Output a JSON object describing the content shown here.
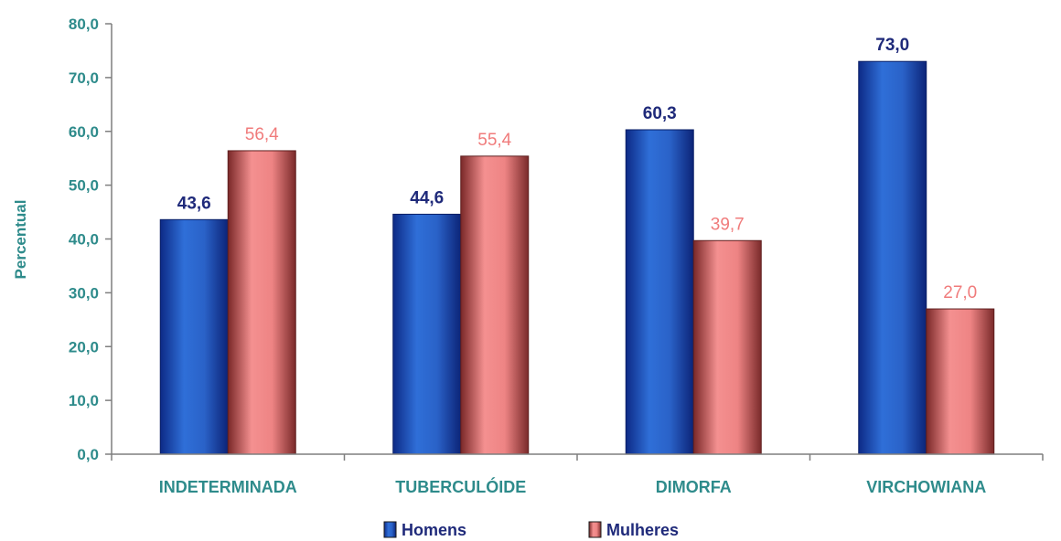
{
  "chart_data": {
    "type": "bar",
    "ylabel": "Percentual",
    "ylim": [
      0,
      80
    ],
    "yticks": [
      "0,0",
      "10,0",
      "20,0",
      "30,0",
      "40,0",
      "50,0",
      "60,0",
      "70,0",
      "80,0"
    ],
    "categories": [
      "INDETERMINADA",
      "TUBERCULÓIDE",
      "DIMORFA",
      "VIRCHOWIANA"
    ],
    "series": [
      {
        "name": "Homens",
        "color": "#1f4fb0",
        "values": [
          43.6,
          44.6,
          60.3,
          73.0
        ],
        "labels": [
          "43,6",
          "44,6",
          "60,3",
          "73,0"
        ]
      },
      {
        "name": "Mulheres",
        "color": "#e87474",
        "values": [
          56.4,
          55.4,
          39.7,
          27.0
        ],
        "labels": [
          "56,4",
          "55,4",
          "39,7",
          "27,0"
        ]
      }
    ],
    "legend": "bottom"
  }
}
